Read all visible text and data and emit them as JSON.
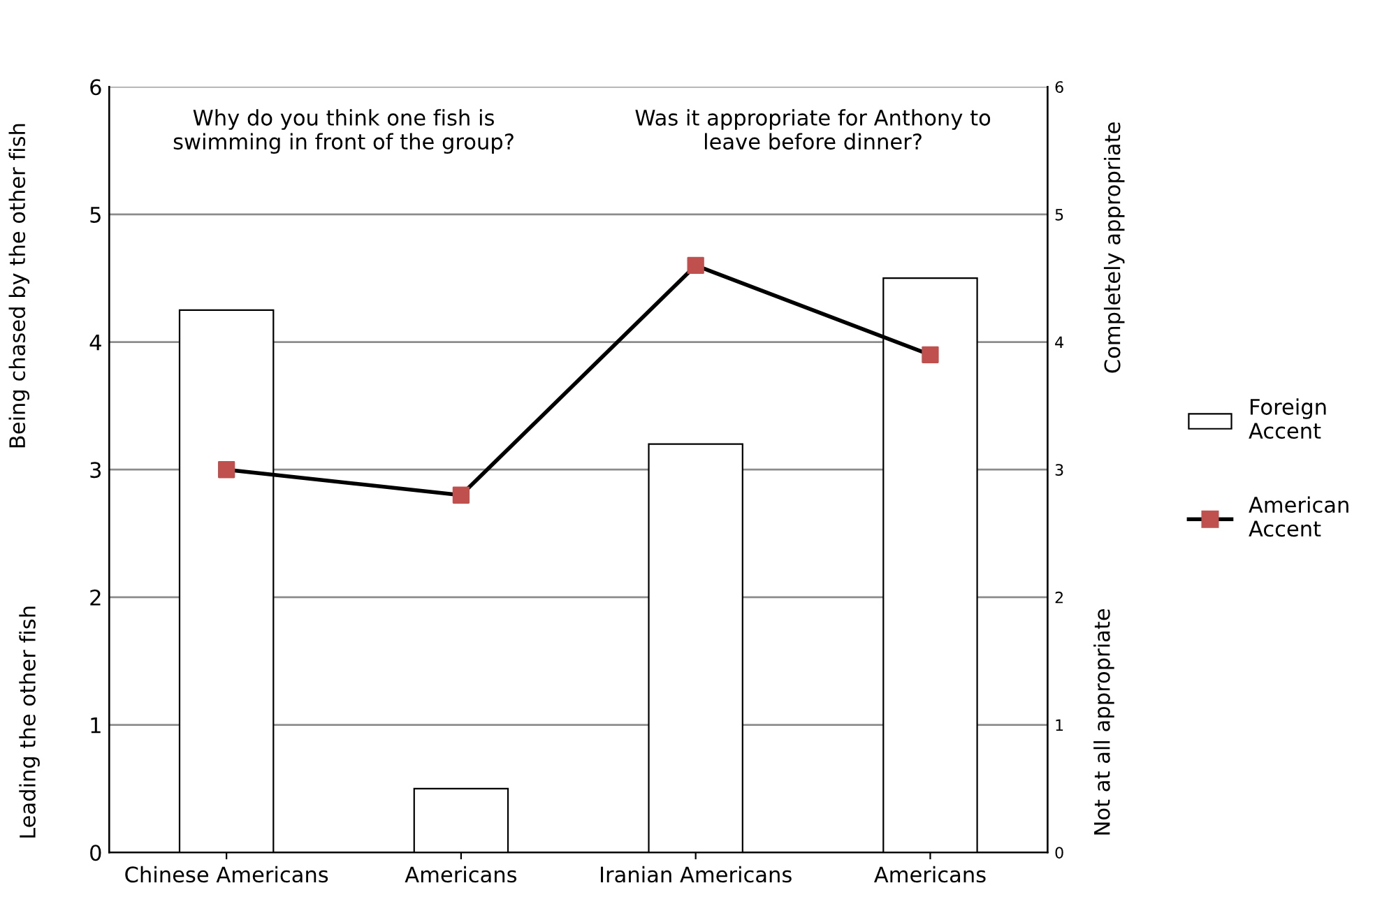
{
  "chart_data": {
    "type": "bar",
    "categories": [
      "Chinese Americans",
      "Americans",
      "Iranian Americans",
      "Americans"
    ],
    "series": [
      {
        "name": "Foreign Accent",
        "color": "#ffffff",
        "values": [
          4.25,
          0.5,
          3.2,
          4.5
        ]
      },
      {
        "name": "American Accent",
        "type": "line",
        "color": "#000000",
        "colors": [
          "#c0504d",
          "#c0504d",
          "#c0504d",
          "#c0504d"
        ],
        "marker": "square",
        "values": [
          3.0,
          2.8,
          4.6,
          3.9
        ]
      }
    ],
    "ylim": [
      0,
      6
    ],
    "yticks": [
      0,
      1,
      2,
      3,
      4,
      5,
      6
    ],
    "y2lim": [
      0,
      6
    ],
    "y2ticks": [
      0,
      1,
      2,
      3,
      4,
      5,
      6
    ],
    "ylabel": "Being chased by the other fish",
    "y2label": "Completely appropriate",
    "annotations": [
      "Why do you think one fish is swimming in front of the group?",
      "Was it appropriate for Anthony to leave before dinner?",
      "Leading the other fish",
      "Not at all appropriate"
    ],
    "grid": "y",
    "legend": "right"
  }
}
